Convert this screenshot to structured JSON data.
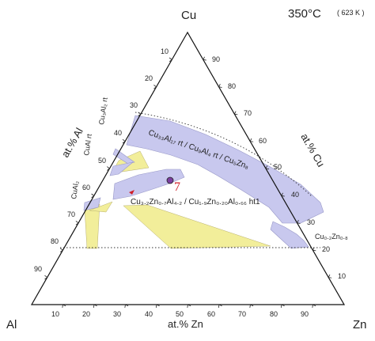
{
  "diagram": {
    "corners": {
      "top": "Cu",
      "left": "Al",
      "right": "Zn"
    },
    "temperature": {
      "celsius": "350°C",
      "kelvin": "( 623 K )"
    },
    "axis_labels": {
      "left": "at.% Al",
      "right": "at.% Cu",
      "bottom": "at.% Zn"
    },
    "ticks": {
      "left": [
        "10",
        "20",
        "30",
        "40",
        "50",
        "60",
        "70",
        "80",
        "90"
      ],
      "right": [
        "90",
        "80",
        "70",
        "60",
        "50",
        "40",
        "30",
        "20",
        "10"
      ],
      "bottom": [
        "10",
        "20",
        "30",
        "40",
        "50",
        "60",
        "70",
        "80",
        "90"
      ]
    },
    "phase_labels": {
      "cual2_rt": "Cu₃Al₂ rt",
      "cual_rt": "CuAl rt",
      "cual2": "CuAl₂",
      "band": "Cu₃₃Al₁₇ rt / Cu₉Al₄ rt / Cu₅Zn₈",
      "tau": "Cu₃.₂Zn₀.₇Al₄.₂ / Cu₁.₉Zn₀.₂₀Al₀.₆₆ ht1",
      "cuzn": "Cu₀.₂Zn₀.₈"
    },
    "point_label": "7",
    "colors": {
      "ternary_band": "#c8c8ee",
      "two_phase": "#f2ee9a",
      "point": "#7b3fa0",
      "point_label": "#d0202a",
      "arrow": "#d0202a"
    }
  }
}
